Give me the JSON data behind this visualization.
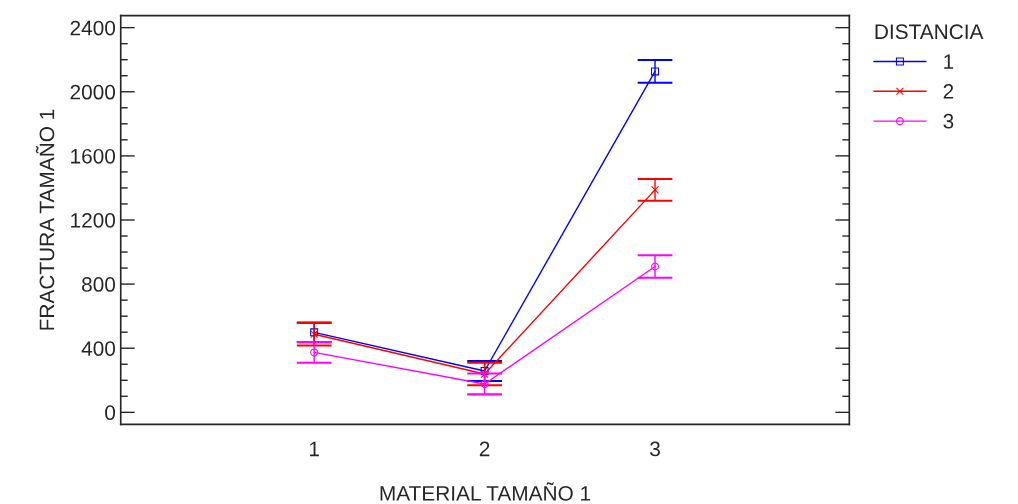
{
  "chart_data": {
    "type": "line",
    "categories": [
      "1",
      "2",
      "3"
    ],
    "xlabel": "MATERIAL TAMAÑO 1",
    "ylabel": "FRACTURA TAMAÑO 1",
    "legend_title": "DISTANCIA",
    "ylim": [
      -75,
      2475
    ],
    "yticks": [
      0,
      400,
      800,
      1200,
      1600,
      2000,
      2400
    ],
    "grid": false,
    "legend": "right",
    "line_style": "solid",
    "series": [
      {
        "name": "1",
        "color": "#0000ff",
        "marker": "square",
        "values": [
          499,
          258,
          2127
        ],
        "errors": [
          62,
          62,
          71
        ]
      },
      {
        "name": "2",
        "color": "#ff0000",
        "marker": "cross",
        "values": [
          487,
          239,
          1388
        ],
        "errors": [
          70,
          70,
          68
        ]
      },
      {
        "name": "3",
        "color": "#ff00ff",
        "marker": "circle",
        "values": [
          374,
          177,
          910
        ],
        "errors": [
          65,
          65,
          70
        ]
      }
    ]
  }
}
